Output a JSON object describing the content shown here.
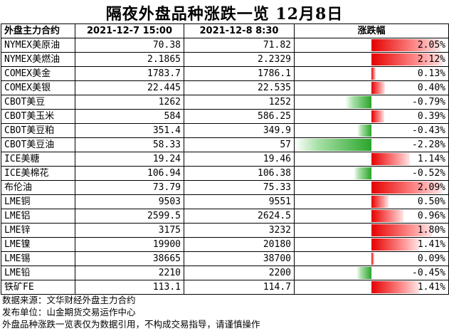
{
  "title": "隔夜外盘品种涨跌一览 12月8日",
  "table": {
    "headers": [
      "外盘主力合约",
      "2021-12-7 15:00",
      "2021-12-8 8:30",
      "涨跌幅"
    ]
  },
  "chart_data": {
    "type": "bar",
    "title": "隔夜外盘品种涨跌一览 12月8日",
    "categories": [
      "NYMEX美原油",
      "NYMEX美燃油",
      "COMEX美金",
      "COMEX美银",
      "CBOT美豆",
      "CBOT美玉米",
      "CBOT美豆粕",
      "CBOT美豆油",
      "ICE美糖",
      "ICE美棉花",
      "布伦油",
      "LME铜",
      "LME铝",
      "LME锌",
      "LME镍",
      "LME锡",
      "LME铅",
      "铁矿FE"
    ],
    "prev": [
      "70.38",
      "2.1865",
      "1783.7",
      "22.445",
      "1262",
      "584",
      "351.4",
      "58.33",
      "19.24",
      "106.94",
      "73.79",
      "9503",
      "2599.5",
      "3175",
      "19900",
      "38665",
      "2210",
      "113.1"
    ],
    "curr": [
      "71.82",
      "2.2329",
      "1786.1",
      "22.535",
      "1252",
      "586.25",
      "349.9",
      "57",
      "19.46",
      "106.38",
      "75.33",
      "9551",
      "2624.5",
      "3232",
      "20180",
      "38700",
      "2200",
      "114.7"
    ],
    "values": [
      2.05,
      2.12,
      0.13,
      0.4,
      -0.79,
      0.39,
      -0.43,
      -2.28,
      1.14,
      -0.52,
      2.09,
      0.5,
      0.96,
      1.8,
      1.41,
      0.09,
      -0.45,
      1.41
    ],
    "value_labels": [
      "2.05%",
      "2.12%",
      "0.13%",
      "0.40%",
      "-0.79%",
      "0.39%",
      "-0.43%",
      "-2.28%",
      "1.14%",
      "-0.52%",
      "2.09%",
      "0.50%",
      "0.96%",
      "1.80%",
      "1.41%",
      "0.09%",
      "-0.45%",
      "1.41%"
    ],
    "range": [
      -2.28,
      2.28
    ],
    "colors": {
      "up": "#e60000",
      "down": "#2aa52a"
    }
  },
  "footer": {
    "line1": "数据来源：文华财经外盘主力合约",
    "line2": "发布单位：山金期货交易运作中心",
    "line3": "外盘品种涨跌一览表仅为数据引用，不构成交易指导，请谨慎操作"
  }
}
